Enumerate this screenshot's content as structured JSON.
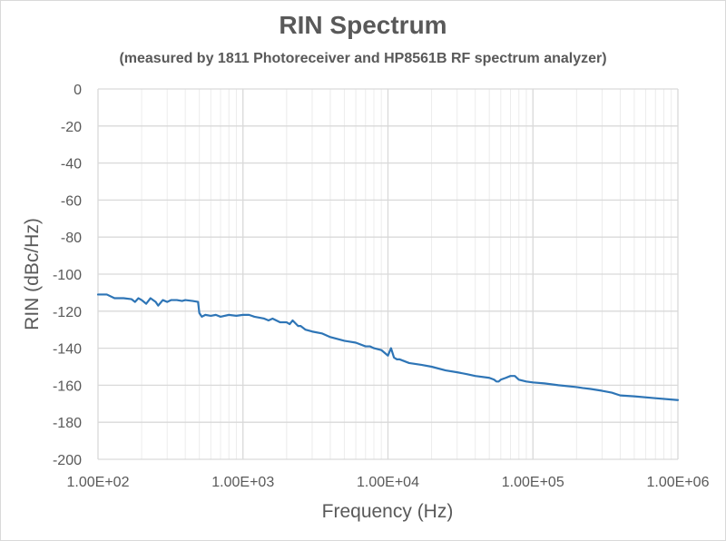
{
  "chart_data": {
    "type": "line",
    "title": "RIN Spectrum",
    "subtitle": "(measured by 1811 Photoreceiver and HP8561B RF spectrum analyzer)",
    "xlabel": "Frequency (Hz)",
    "ylabel": "RIN (dBc/Hz)",
    "x_scale": "log",
    "xlim": [
      100,
      1000000
    ],
    "ylim": [
      -200,
      0
    ],
    "x_tick_labels": [
      "1.00E+02",
      "1.00E+03",
      "1.00E+04",
      "1.00E+05",
      "1.00E+06"
    ],
    "y_tick_labels": [
      "0",
      "-20",
      "-40",
      "-60",
      "-80",
      "-100",
      "-120",
      "-140",
      "-160",
      "-180",
      "-200"
    ],
    "grid": true,
    "legend": "none",
    "colors": {
      "series": "#2e75b6",
      "grid": "#d9d9d9",
      "text": "#595959"
    },
    "series": [
      {
        "x": [
          100,
          115,
          130,
          150,
          170,
          180,
          190,
          200,
          215,
          230,
          250,
          260,
          280,
          300,
          320,
          350,
          380,
          400,
          450,
          490,
          500,
          520,
          550,
          600,
          650,
          700,
          800,
          900,
          1000,
          1100,
          1200,
          1400,
          1500,
          1600,
          1800,
          2000,
          2100,
          2200,
          2400,
          2500,
          2700,
          3000,
          3500,
          4000,
          5000,
          6000,
          7000,
          7500,
          8000,
          9000,
          10000,
          10500,
          11000,
          11500,
          12000,
          14000,
          17000,
          20000,
          25000,
          30000,
          35000,
          40000,
          50000,
          54000,
          56000,
          58000,
          60000,
          65000,
          70000,
          75000,
          80000,
          90000,
          100000,
          120000,
          150000,
          200000,
          220000,
          250000,
          300000,
          350000,
          400000,
          500000,
          700000,
          1000000
        ],
        "y": [
          -111,
          -111,
          -113,
          -113,
          -113.5,
          -115,
          -113,
          -114,
          -116,
          -113,
          -115,
          -117,
          -114,
          -115,
          -114,
          -114,
          -114.5,
          -114,
          -114.5,
          -115,
          -121,
          -123,
          -122,
          -122.5,
          -122,
          -123,
          -122,
          -122.5,
          -122,
          -122,
          -123,
          -124,
          -125,
          -124,
          -126,
          -126,
          -127,
          -125,
          -128,
          -128,
          -130,
          -131,
          -132,
          -134,
          -136,
          -137,
          -139,
          -139,
          -140,
          -141,
          -144,
          -140,
          -145,
          -146,
          -146,
          -148,
          -149,
          -150,
          -152,
          -153,
          -154,
          -155,
          -156,
          -157,
          -158,
          -158,
          -157,
          -156,
          -155,
          -155,
          -157,
          -158,
          -158.5,
          -159,
          -160,
          -161,
          -161.5,
          -162,
          -163,
          -164,
          -165.5,
          -166,
          -167,
          -168
        ]
      }
    ]
  }
}
